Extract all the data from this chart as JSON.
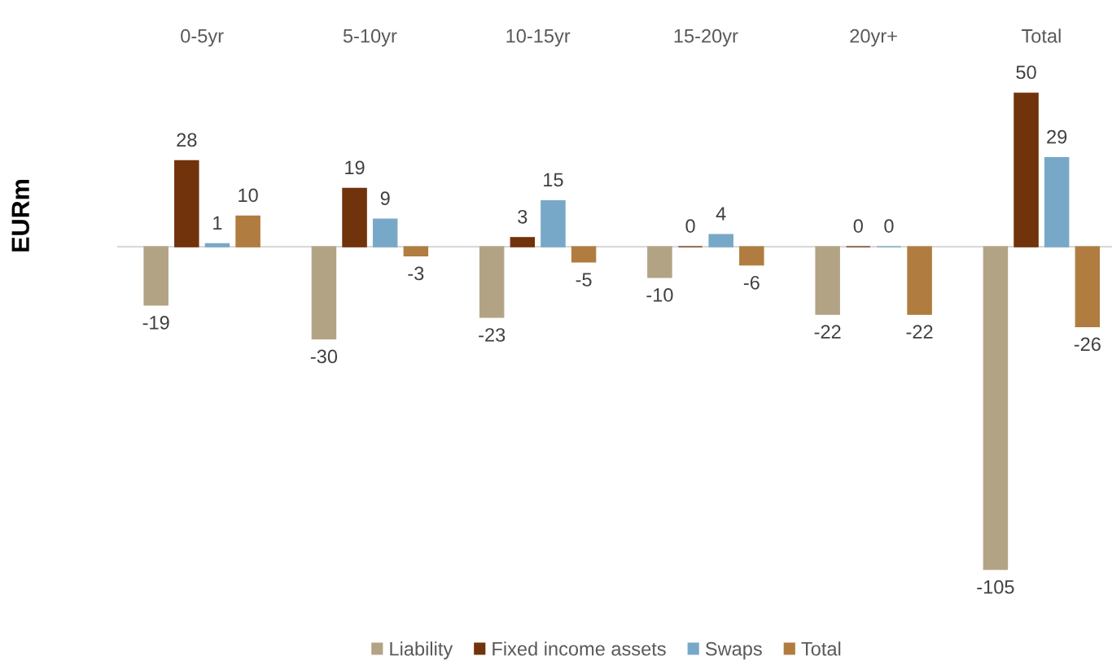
{
  "chart_data": {
    "type": "bar",
    "ylabel": "EURm",
    "categories": [
      "0-5yr",
      "5-10yr",
      "10-15yr",
      "15-20yr",
      "20yr+",
      "Total"
    ],
    "series": [
      {
        "name": "Liability",
        "color": "#b3a385",
        "values": [
          -19,
          -30,
          -23,
          -10,
          -22,
          -105
        ]
      },
      {
        "name": "Fixed income assets",
        "color": "#71330b",
        "values": [
          28,
          19,
          3,
          0,
          0,
          50
        ]
      },
      {
        "name": "Swaps",
        "color": "#78a8c7",
        "values": [
          1,
          9,
          15,
          4,
          0,
          29
        ]
      },
      {
        "name": "Total",
        "color": "#b07c3f",
        "values": [
          10,
          -3,
          -5,
          -6,
          -22,
          -26
        ]
      }
    ],
    "tick_labels": "x",
    "data_labels": true,
    "legend": "bottom"
  }
}
